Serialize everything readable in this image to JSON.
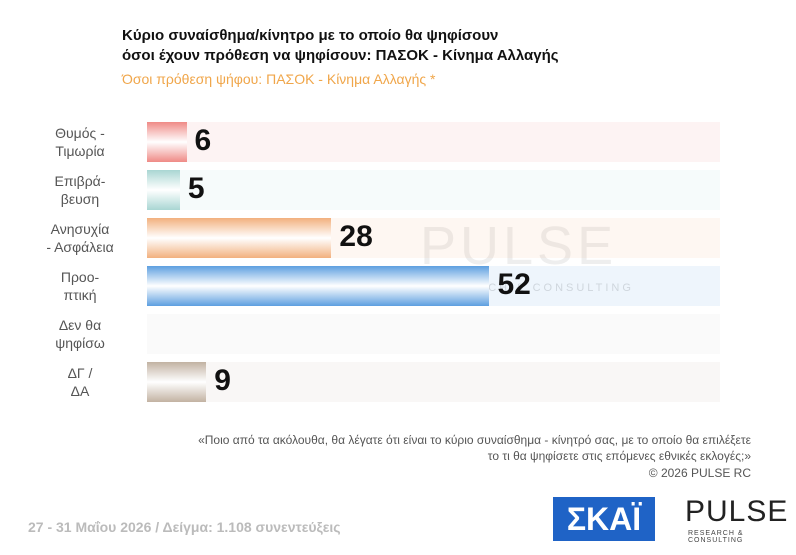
{
  "chart_data": {
    "type": "bar",
    "orientation": "horizontal",
    "title": "Κύριο συναίσθημα/κίνητρο με το οποίο θα ψηφίσουν\nόσοι έχουν πρόθεση να ψηφίσουν: ΠΑΣΟΚ - Κίνημα Αλλαγής",
    "subtitle": "Όσοι πρόθεση ψήφου: ΠΑΣΟΚ - Κίνημα Αλλαγής *",
    "categories": [
      "Θυμός -\nΤιμωρία",
      "Επιβρά-\nβευση",
      "Ανησυχία\n- Ασφάλεια",
      "Προο-\nπτική",
      "Δεν θα\nψηφίσω",
      "ΔΓ /\nΔΑ"
    ],
    "values": [
      6,
      5,
      28,
      52,
      null,
      9
    ],
    "colors": [
      "#ef8a86",
      "#a9d6d3",
      "#f2b07e",
      "#5d9fe0",
      "#cccccc",
      "#c2b2a2"
    ],
    "xlim": [
      0,
      87
    ],
    "note": "«Ποιο από τα ακόλουθα, θα λέγατε ότι είναι το κύριο συναίσθημα - κίνητρό σας, με το οποίο θα επιλέξετε\nτο τι θα ψηφίσετε στις επόμενες εθνικές εκλογές;»",
    "copyright": "©  2026  PULSE RC",
    "footer": "27 - 31  Μαΐου 2026  /  Δείγμα:  1.108 συνεντεύξεις",
    "watermark": "PULSE",
    "watermark_sub": "RESEARCH & CONSULTING",
    "logo_left": "ΣΚΑΪ",
    "logo_right": "PULSE",
    "logo_right_sub": "RESEARCH & CONSULTING"
  }
}
